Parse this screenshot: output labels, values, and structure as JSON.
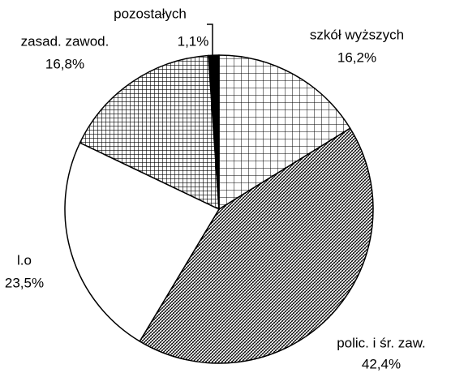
{
  "chart_data": {
    "type": "pie",
    "categories": [
      "szkół wyższych",
      "polic. i śr. zaw.",
      "l.o",
      "zasad. zawod.",
      "pozostałych"
    ],
    "values": [
      16.2,
      42.4,
      23.5,
      16.8,
      1.1
    ],
    "value_labels": [
      "16,2%",
      "42,4%",
      "23,5%",
      "16,8%",
      "1,1%"
    ]
  }
}
